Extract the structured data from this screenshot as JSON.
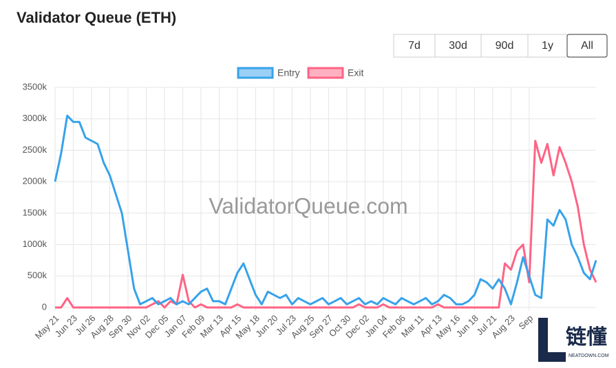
{
  "chart_data": {
    "type": "line",
    "title": "Validator Queue (ETH)",
    "categories": [
      "May 21",
      null,
      null,
      "Jun 23",
      null,
      null,
      "Jul 26",
      null,
      null,
      "Aug 28",
      null,
      null,
      "Sep 30",
      null,
      null,
      "Nov 02",
      null,
      null,
      "Dec 05",
      null,
      null,
      "Jan 07",
      null,
      null,
      "Feb 09",
      null,
      null,
      "Mar 13",
      null,
      null,
      "Apr 15",
      null,
      null,
      "May 18",
      null,
      null,
      "Jun 20",
      null,
      null,
      "Jul 23",
      null,
      null,
      "Aug 25",
      null,
      null,
      "Sep 27",
      null,
      null,
      "Oct 30",
      null,
      null,
      "Dec 02",
      null,
      null,
      "Jan 04",
      null,
      null,
      "Feb 06",
      null,
      null,
      "Mar 11",
      null,
      null,
      "Apr 13",
      null,
      null,
      "May 16",
      null,
      null,
      "Jun 18",
      null,
      null,
      "Jul 21",
      null,
      null,
      "Aug 23",
      null,
      null,
      "Sep",
      null,
      null,
      null,
      null,
      null,
      null,
      null,
      null,
      null,
      null,
      null
    ],
    "series": [
      {
        "name": "Entry",
        "color": "#36a2eb",
        "fill": "#9ad0f5",
        "values": [
          2000000,
          2450000,
          3050000,
          2950000,
          2950000,
          2700000,
          2650000,
          2600000,
          2300000,
          2100000,
          1800000,
          1500000,
          900000,
          300000,
          50000,
          100000,
          150000,
          50000,
          100000,
          150000,
          50000,
          100000,
          50000,
          150000,
          250000,
          300000,
          100000,
          100000,
          50000,
          300000,
          550000,
          700000,
          450000,
          200000,
          50000,
          250000,
          200000,
          150000,
          200000,
          50000,
          150000,
          100000,
          50000,
          100000,
          150000,
          50000,
          100000,
          150000,
          50000,
          100000,
          150000,
          50000,
          100000,
          50000,
          150000,
          100000,
          50000,
          150000,
          100000,
          50000,
          100000,
          150000,
          50000,
          100000,
          200000,
          150000,
          50000,
          50000,
          100000,
          200000,
          450000,
          400000,
          300000,
          450000,
          300000,
          50000,
          400000,
          800000,
          500000,
          200000,
          150000,
          1400000,
          1300000,
          1550000,
          1400000,
          1000000,
          800000,
          550000,
          450000,
          750000
        ]
      },
      {
        "name": "Exit",
        "color": "#ff6384",
        "fill": "#ffb1c1",
        "values": [
          0,
          0,
          150000,
          0,
          0,
          0,
          0,
          0,
          0,
          0,
          0,
          0,
          0,
          0,
          0,
          0,
          50000,
          100000,
          0,
          100000,
          50000,
          520000,
          100000,
          0,
          50000,
          0,
          0,
          0,
          0,
          0,
          50000,
          0,
          0,
          0,
          0,
          0,
          0,
          0,
          0,
          0,
          0,
          0,
          0,
          0,
          0,
          0,
          0,
          0,
          0,
          0,
          50000,
          0,
          0,
          0,
          50000,
          0,
          0,
          0,
          0,
          0,
          0,
          0,
          0,
          50000,
          0,
          0,
          0,
          0,
          0,
          0,
          0,
          0,
          0,
          0,
          700000,
          600000,
          900000,
          1000000,
          400000,
          2650000,
          2300000,
          2600000,
          2100000,
          2550000,
          2300000,
          2000000,
          1600000,
          1000000,
          600000,
          400000
        ]
      }
    ],
    "ylim": [
      0,
      3500000
    ],
    "yticks": [
      0,
      {
        "value": 500000,
        "label": "500k"
      },
      {
        "value": 1000000,
        "label": "1000k"
      },
      {
        "value": 1500000,
        "label": "1500k"
      },
      {
        "value": 2000000,
        "label": "2000k"
      },
      {
        "value": 2500000,
        "label": "2500k"
      },
      {
        "value": 3000000,
        "label": "3000k"
      },
      {
        "value": 3500000,
        "label": "3500k"
      }
    ],
    "grid": true,
    "legend": "top"
  },
  "controls": {
    "buttons": [
      "7d",
      "30d",
      "90d",
      "1y",
      "All"
    ],
    "selected_index": 4
  },
  "watermark": "ValidatorQueue.com",
  "logo": {
    "text": "链懂",
    "subtext": "NEATDOWN.COM"
  }
}
